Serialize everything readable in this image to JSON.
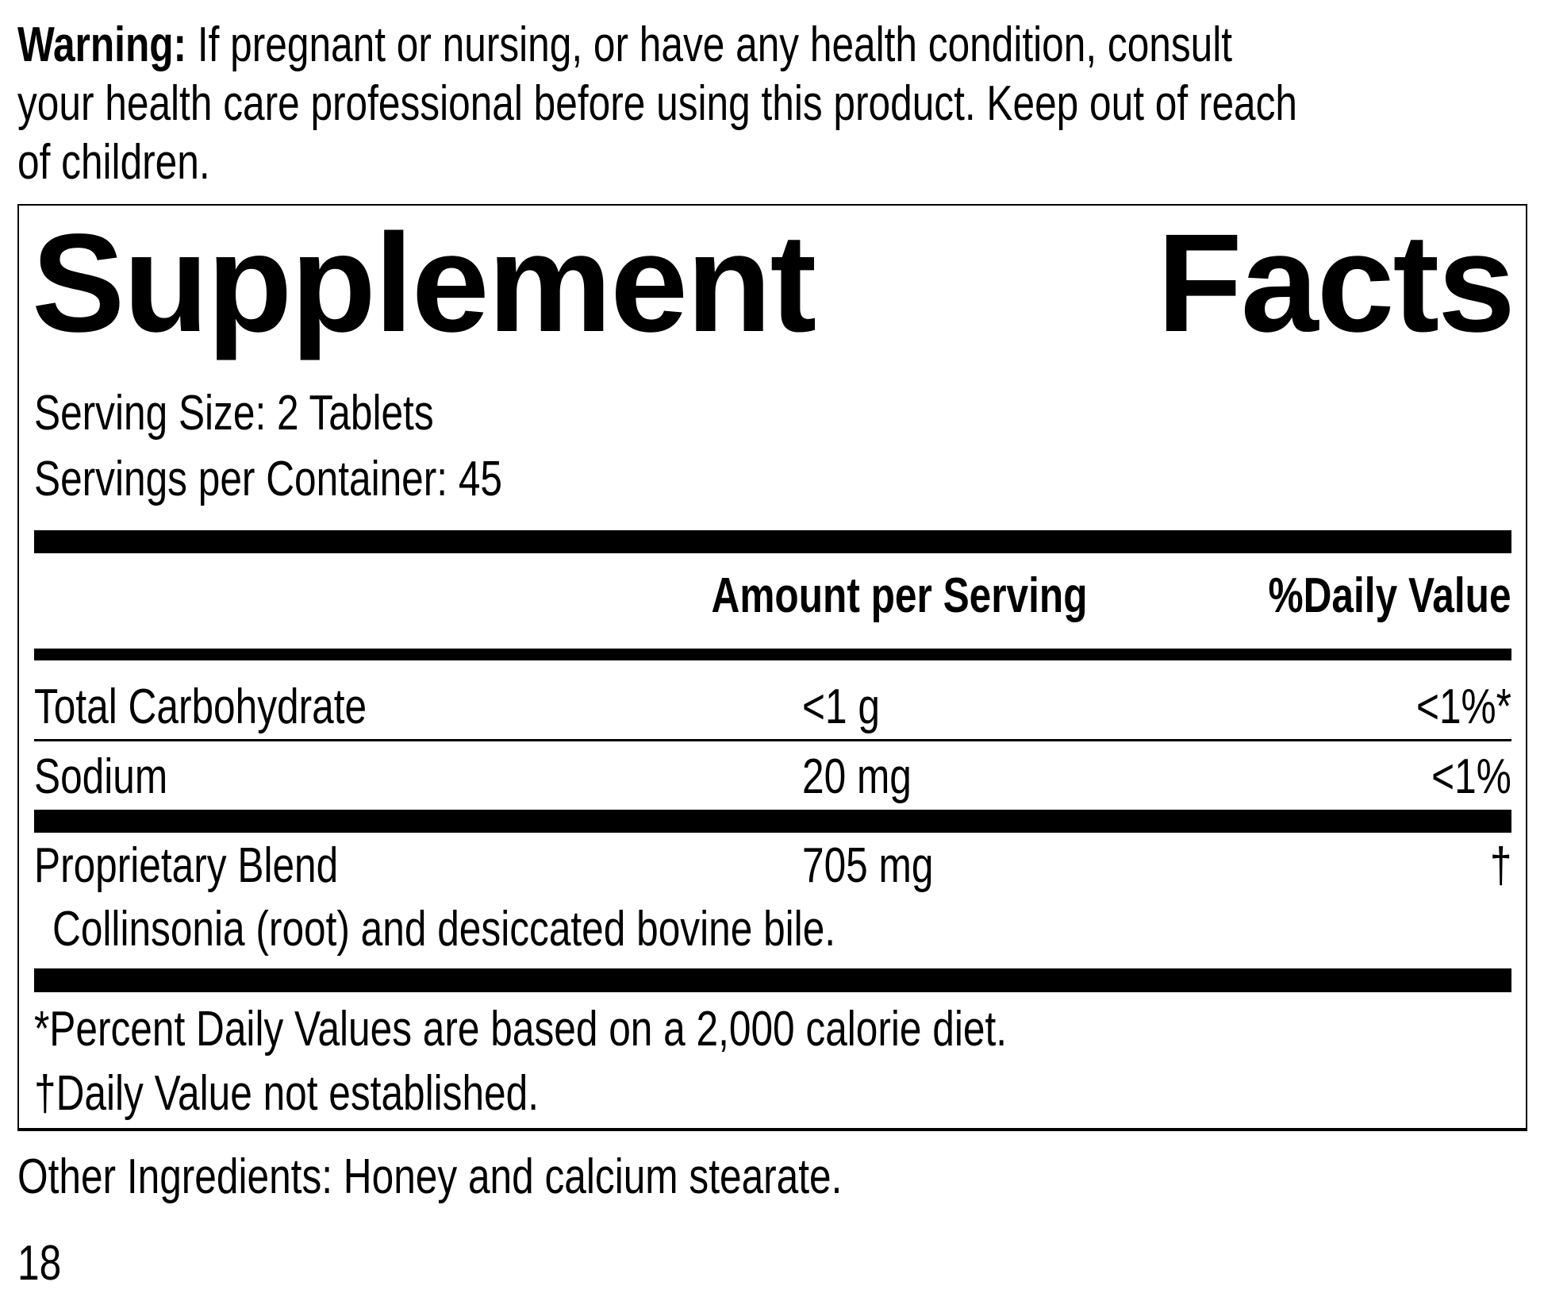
{
  "warning": {
    "label": "Warning:",
    "lines": [
      " If pregnant or nursing, or have any health condition, consult",
      "your health care professional before using this product. Keep out of reach",
      "of children."
    ]
  },
  "facts": {
    "title_words": [
      "Supplement",
      "Facts"
    ],
    "serving_size": "Serving Size: 2 Tablets",
    "servings_per_container": "Servings per Container: 45",
    "headers": {
      "amount": "Amount per Serving",
      "dv": "%Daily Value"
    },
    "rows": [
      {
        "name": "Total Carbohydrate",
        "amount": "<1 g",
        "dv": "<1%*"
      },
      {
        "name": "Sodium",
        "amount": "20 mg",
        "dv": "<1%"
      },
      {
        "name": "Proprietary Blend",
        "amount": "705 mg",
        "dv": "†",
        "detail": "Collinsonia (root) and desiccated bovine bile."
      }
    ],
    "footnotes": [
      "*Percent Daily Values are based on a 2,000 calorie diet.",
      "†Daily Value not established."
    ]
  },
  "other_ingredients": "Other Ingredients: Honey and calcium stearate.",
  "page_number": "18"
}
